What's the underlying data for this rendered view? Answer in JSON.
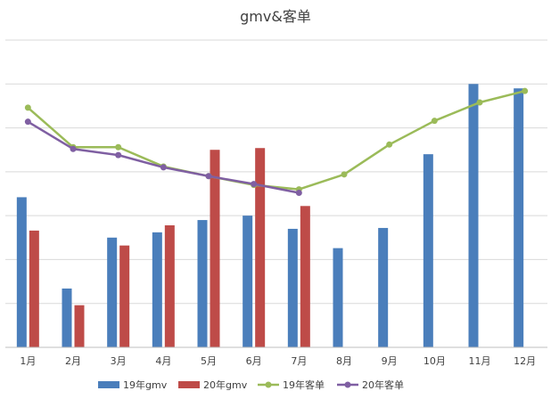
{
  "chart_data": {
    "type": "bar",
    "title": "gmv&客单",
    "categories": [
      "1月",
      "2月",
      "3月",
      "4月",
      "5月",
      "6月",
      "7月",
      "8月",
      "9月",
      "10月",
      "11月",
      "12月"
    ],
    "ylim": [
      0,
      350
    ],
    "grid": true,
    "legend_position": "bottom",
    "bar_series": [
      {
        "name": "19年gmv",
        "color": "#4a7ebb",
        "values": [
          171,
          67,
          125,
          131,
          145,
          150,
          135,
          113,
          136,
          220,
          300,
          295
        ]
      },
      {
        "name": "20年gmv",
        "color": "#be4b48",
        "values": [
          133,
          48,
          116,
          139,
          225,
          227,
          161,
          null,
          null,
          null,
          null,
          null
        ]
      }
    ],
    "line_series": [
      {
        "name": "19年客单",
        "color": "#9bbb59",
        "values": [
          273,
          228,
          228,
          206,
          195,
          185,
          180,
          197,
          231,
          258,
          279,
          292
        ]
      },
      {
        "name": "20年客单",
        "color": "#7f5fa2",
        "values": [
          257,
          226,
          219,
          205,
          195,
          186,
          176,
          null,
          null,
          null,
          null,
          null
        ]
      }
    ]
  }
}
